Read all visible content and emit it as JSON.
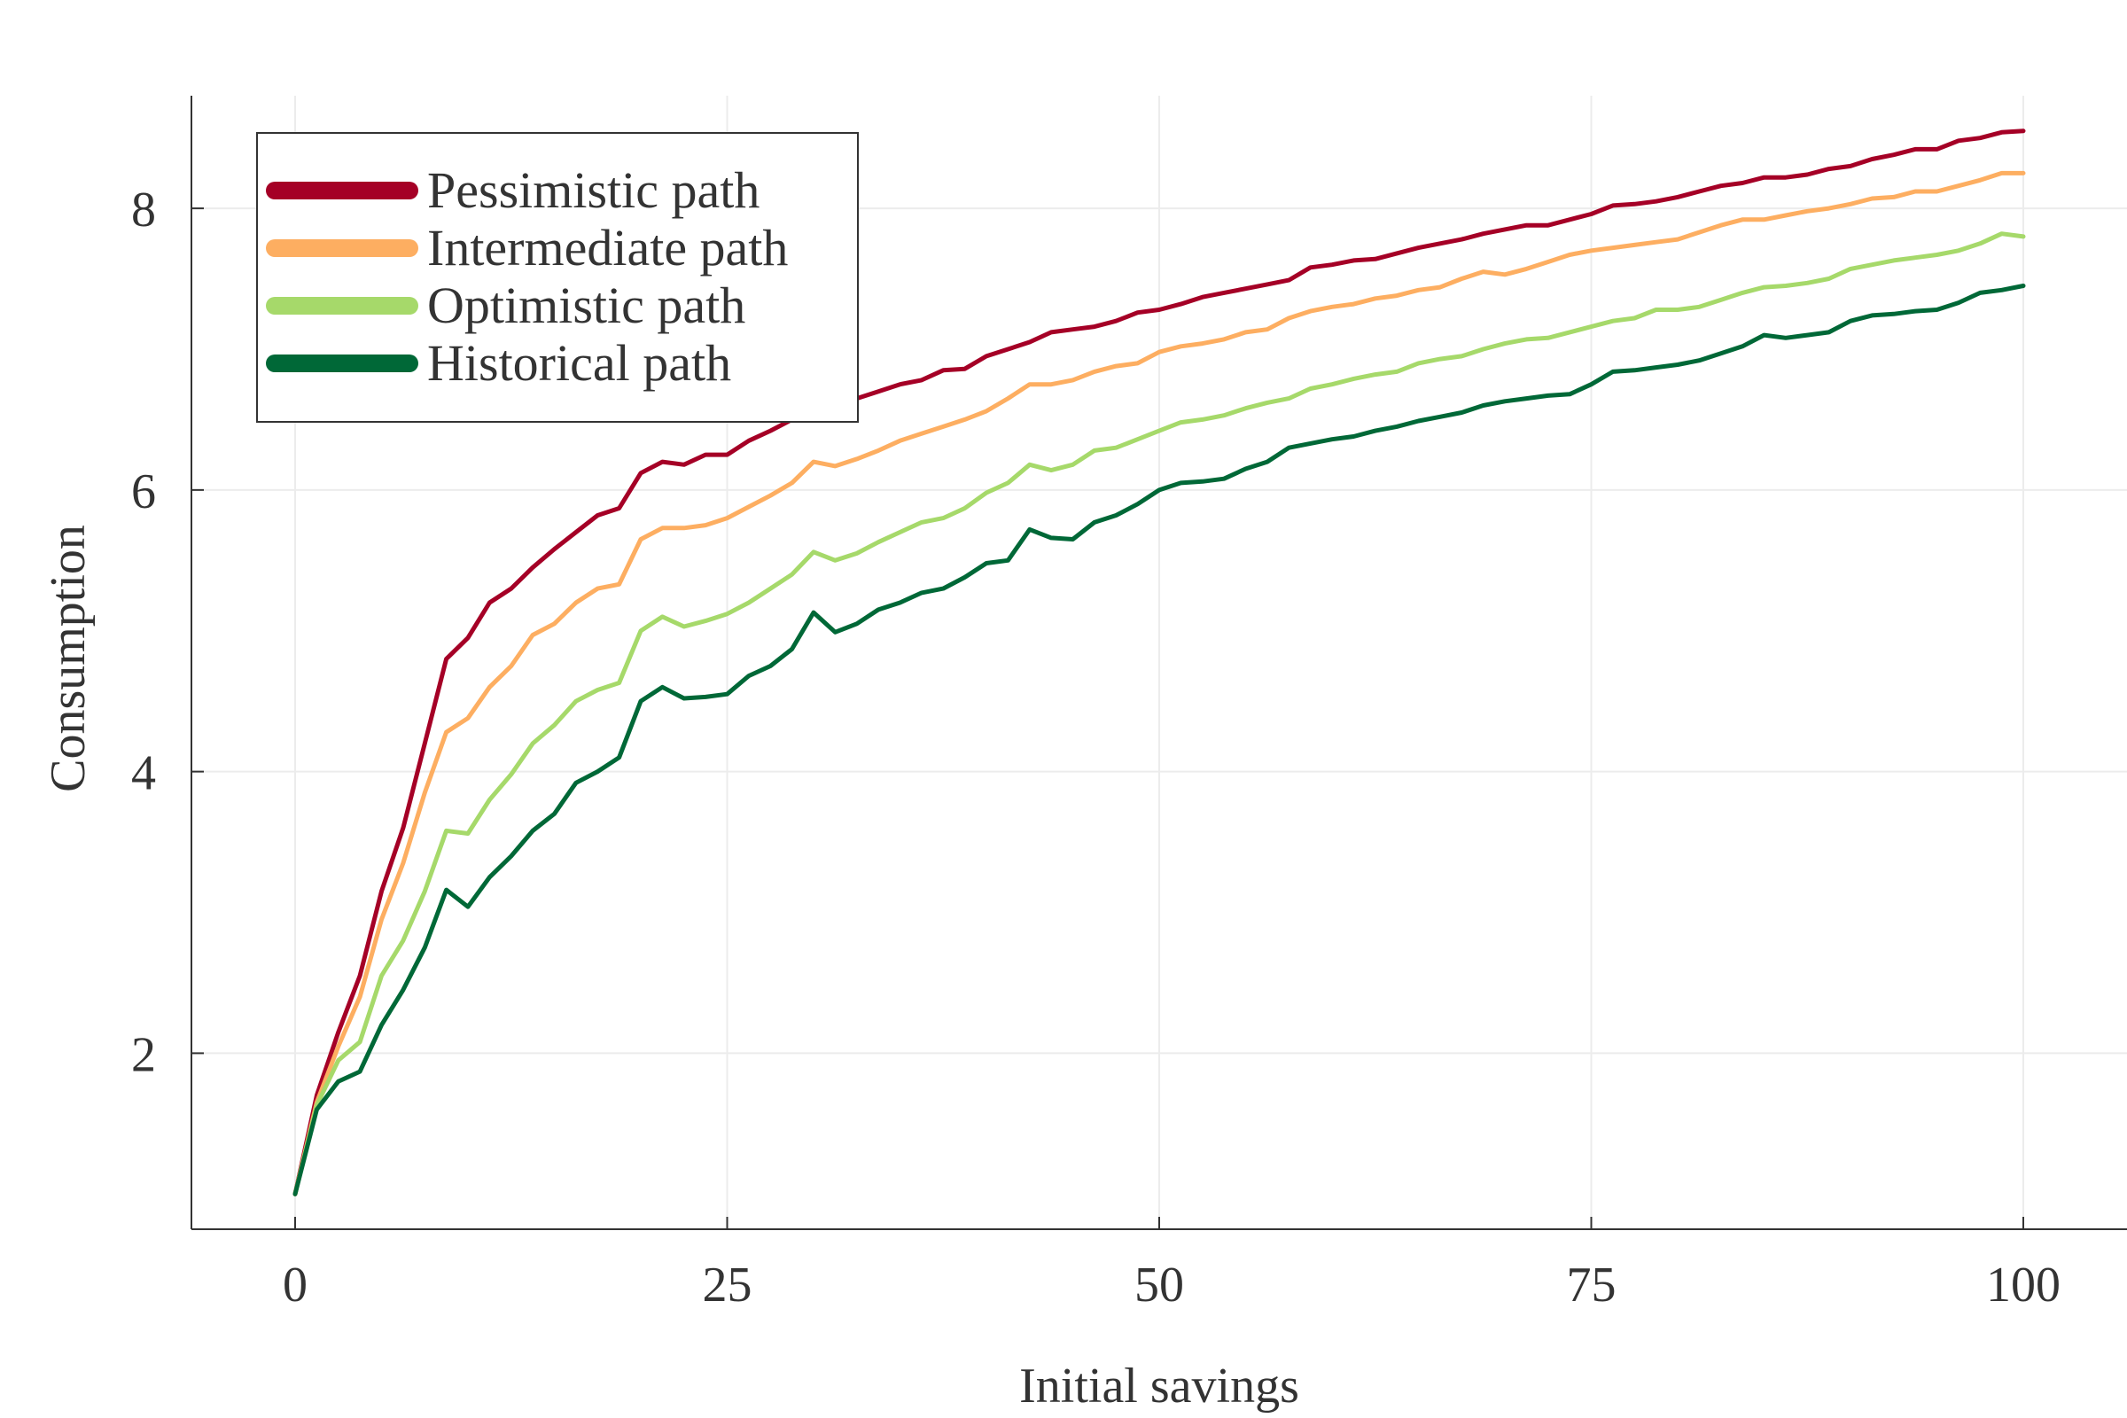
{
  "chart_data": {
    "type": "line",
    "title": "",
    "xlabel": "Initial savings",
    "ylabel": "Consumption",
    "xlim": [
      -6,
      106
    ],
    "ylim": [
      0.75,
      8.8
    ],
    "xticks": [
      0,
      25,
      50,
      75,
      100
    ],
    "yticks": [
      2,
      4,
      6,
      8
    ],
    "grid": true,
    "legend_position": "top-left",
    "x": [
      0,
      1.25,
      2.5,
      3.75,
      5,
      6.25,
      7.5,
      8.75,
      10,
      11.25,
      12.5,
      13.75,
      15,
      16.25,
      17.5,
      18.75,
      20,
      21.25,
      22.5,
      23.75,
      25,
      26.25,
      27.5,
      28.75,
      30,
      31.25,
      32.5,
      33.75,
      35,
      36.25,
      37.5,
      38.75,
      40,
      41.25,
      42.5,
      43.75,
      45,
      46.25,
      47.5,
      48.75,
      50,
      51.25,
      52.5,
      53.75,
      55,
      56.25,
      57.5,
      58.75,
      60,
      61.25,
      62.5,
      63.75,
      65,
      66.25,
      67.5,
      68.75,
      70,
      71.25,
      72.5,
      73.75,
      75,
      76.25,
      77.5,
      78.75,
      80,
      81.25,
      82.5,
      83.75,
      85,
      86.25,
      87.5,
      88.75,
      90,
      91.25,
      92.5,
      93.75,
      95,
      96.25,
      97.5,
      98.75,
      100
    ],
    "series": [
      {
        "name": "Pessimistic path",
        "color": "#a50026",
        "values": [
          1.0,
          1.7,
          2.15,
          2.55,
          3.15,
          3.6,
          4.2,
          4.8,
          4.95,
          5.2,
          5.3,
          5.45,
          5.58,
          5.7,
          5.82,
          5.87,
          6.12,
          6.2,
          6.18,
          6.25,
          6.25,
          6.35,
          6.42,
          6.5,
          6.57,
          6.6,
          6.65,
          6.7,
          6.75,
          6.78,
          6.85,
          6.86,
          6.95,
          7.0,
          7.05,
          7.12,
          7.14,
          7.16,
          7.2,
          7.26,
          7.28,
          7.32,
          7.37,
          7.4,
          7.43,
          7.46,
          7.49,
          7.58,
          7.6,
          7.63,
          7.64,
          7.68,
          7.72,
          7.75,
          7.78,
          7.82,
          7.85,
          7.88,
          7.88,
          7.92,
          7.96,
          8.02,
          8.03,
          8.05,
          8.08,
          8.12,
          8.16,
          8.18,
          8.22,
          8.22,
          8.24,
          8.28,
          8.3,
          8.35,
          8.38,
          8.42,
          8.42,
          8.48,
          8.5,
          8.54,
          8.55
        ]
      },
      {
        "name": "Intermediate path",
        "color": "#fdae61",
        "values": [
          1.0,
          1.65,
          2.05,
          2.4,
          2.95,
          3.35,
          3.85,
          4.28,
          4.38,
          4.6,
          4.75,
          4.97,
          5.05,
          5.2,
          5.3,
          5.33,
          5.65,
          5.73,
          5.73,
          5.75,
          5.8,
          5.88,
          5.96,
          6.05,
          6.2,
          6.17,
          6.22,
          6.28,
          6.35,
          6.4,
          6.45,
          6.5,
          6.56,
          6.65,
          6.75,
          6.75,
          6.78,
          6.84,
          6.88,
          6.9,
          6.98,
          7.02,
          7.04,
          7.07,
          7.12,
          7.14,
          7.22,
          7.27,
          7.3,
          7.32,
          7.36,
          7.38,
          7.42,
          7.44,
          7.5,
          7.55,
          7.53,
          7.57,
          7.62,
          7.67,
          7.7,
          7.72,
          7.74,
          7.76,
          7.78,
          7.83,
          7.88,
          7.92,
          7.92,
          7.95,
          7.98,
          8.0,
          8.03,
          8.07,
          8.08,
          8.12,
          8.12,
          8.16,
          8.2,
          8.25,
          8.25
        ]
      },
      {
        "name": "Optimistic path",
        "color": "#a6d96a",
        "values": [
          1.0,
          1.63,
          1.95,
          2.08,
          2.55,
          2.8,
          3.15,
          3.58,
          3.56,
          3.8,
          3.98,
          4.2,
          4.33,
          4.5,
          4.58,
          4.63,
          5.0,
          5.1,
          5.03,
          5.07,
          5.12,
          5.2,
          5.3,
          5.4,
          5.56,
          5.5,
          5.55,
          5.63,
          5.7,
          5.77,
          5.8,
          5.87,
          5.98,
          6.05,
          6.18,
          6.14,
          6.18,
          6.28,
          6.3,
          6.36,
          6.42,
          6.48,
          6.5,
          6.53,
          6.58,
          6.62,
          6.65,
          6.72,
          6.75,
          6.79,
          6.82,
          6.84,
          6.9,
          6.93,
          6.95,
          7.0,
          7.04,
          7.07,
          7.08,
          7.12,
          7.16,
          7.2,
          7.22,
          7.28,
          7.28,
          7.3,
          7.35,
          7.4,
          7.44,
          7.45,
          7.47,
          7.5,
          7.57,
          7.6,
          7.63,
          7.65,
          7.67,
          7.7,
          7.75,
          7.82,
          7.8
        ]
      },
      {
        "name": "Historical path",
        "color": "#006837",
        "values": [
          1.0,
          1.6,
          1.8,
          1.87,
          2.2,
          2.45,
          2.75,
          3.16,
          3.04,
          3.25,
          3.4,
          3.58,
          3.7,
          3.92,
          4.0,
          4.1,
          4.5,
          4.6,
          4.52,
          4.53,
          4.55,
          4.68,
          4.75,
          4.87,
          5.13,
          4.99,
          5.05,
          5.15,
          5.2,
          5.27,
          5.3,
          5.38,
          5.48,
          5.5,
          5.72,
          5.66,
          5.65,
          5.77,
          5.82,
          5.9,
          6.0,
          6.05,
          6.06,
          6.08,
          6.15,
          6.2,
          6.3,
          6.33,
          6.36,
          6.38,
          6.42,
          6.45,
          6.49,
          6.52,
          6.55,
          6.6,
          6.63,
          6.65,
          6.67,
          6.68,
          6.75,
          6.84,
          6.85,
          6.87,
          6.89,
          6.92,
          6.97,
          7.02,
          7.1,
          7.08,
          7.1,
          7.12,
          7.2,
          7.24,
          7.25,
          7.27,
          7.28,
          7.33,
          7.4,
          7.42,
          7.45
        ]
      }
    ]
  }
}
